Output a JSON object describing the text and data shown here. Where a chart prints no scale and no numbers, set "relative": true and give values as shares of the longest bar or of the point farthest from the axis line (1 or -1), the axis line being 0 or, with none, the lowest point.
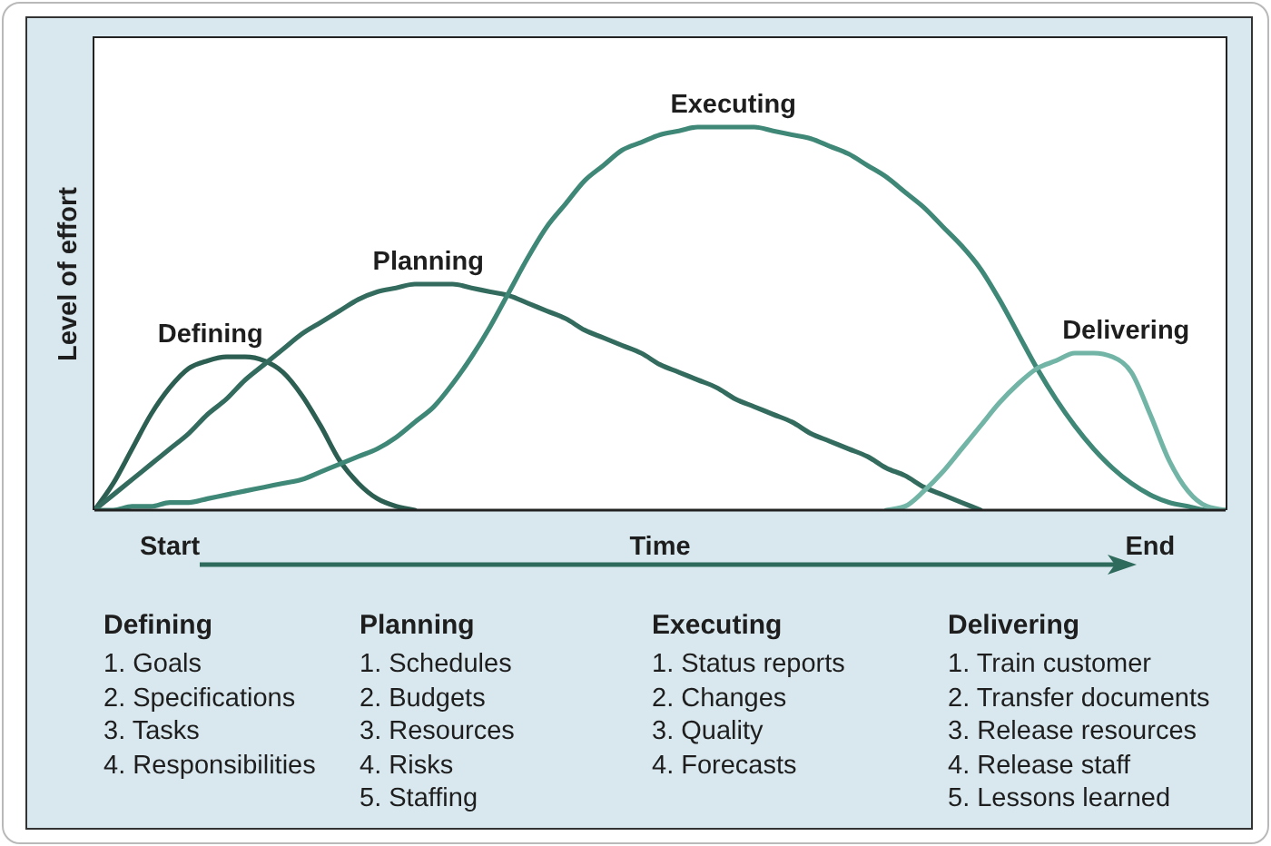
{
  "chart_data": {
    "type": "line",
    "relative": true,
    "xlabel": "Time",
    "ylabel": "Level of effort",
    "categories": [
      null,
      null,
      null,
      null,
      "Start",
      null,
      null,
      null,
      null,
      null,
      null,
      null,
      null,
      null,
      null,
      null,
      null,
      null,
      null,
      null,
      null,
      null,
      null,
      null,
      null,
      null,
      null,
      null,
      null,
      null,
      null,
      null,
      null,
      null,
      null,
      null,
      null,
      null,
      null,
      null,
      null,
      null,
      null,
      null,
      null,
      null,
      null,
      null,
      null,
      null,
      null,
      null,
      null,
      null,
      null,
      null,
      "End",
      null,
      null,
      null,
      null
    ],
    "series": [
      {
        "name": "Defining",
        "color": "#2c5e52",
        "values": [
          0,
          0.07,
          0.16,
          0.25,
          0.32,
          0.37,
          0.39,
          0.4,
          0.4,
          0.39,
          0.36,
          0.3,
          0.22,
          0.13,
          0.07,
          0.03,
          0.01,
          0,
          null,
          null,
          null,
          null,
          null,
          null,
          null,
          null,
          null,
          null,
          null,
          null,
          null,
          null,
          null,
          null,
          null,
          null,
          null,
          null,
          null,
          null,
          null,
          null,
          null,
          null,
          null,
          null,
          null,
          null,
          null,
          null,
          null,
          null,
          null,
          null,
          null,
          null,
          null,
          null,
          null,
          null,
          null
        ]
      },
      {
        "name": "Planning",
        "color": "#336b5e",
        "values": [
          0,
          0.04,
          0.08,
          0.12,
          0.16,
          0.2,
          0.25,
          0.29,
          0.34,
          0.38,
          0.42,
          0.46,
          0.49,
          0.52,
          0.55,
          0.57,
          0.58,
          0.59,
          0.59,
          0.59,
          0.58,
          0.57,
          0.56,
          0.54,
          0.52,
          0.5,
          0.47,
          0.45,
          0.43,
          0.41,
          0.38,
          0.36,
          0.34,
          0.32,
          0.29,
          0.27,
          0.25,
          0.23,
          0.2,
          0.18,
          0.16,
          0.14,
          0.11,
          0.09,
          0.06,
          0.04,
          0.02,
          0,
          null,
          null,
          null,
          null,
          null,
          null,
          null,
          null,
          null,
          null,
          null,
          null,
          null
        ]
      },
      {
        "name": "Executing",
        "color": "#3f8777",
        "values": [
          0,
          0,
          0.01,
          0.01,
          0.02,
          0.02,
          0.03,
          0.04,
          0.05,
          0.06,
          0.07,
          0.08,
          0.1,
          0.12,
          0.14,
          0.16,
          0.19,
          0.23,
          0.27,
          0.33,
          0.4,
          0.48,
          0.57,
          0.66,
          0.74,
          0.8,
          0.86,
          0.9,
          0.94,
          0.96,
          0.98,
          0.99,
          1.0,
          1.0,
          1.0,
          1.0,
          0.99,
          0.98,
          0.97,
          0.95,
          0.93,
          0.9,
          0.87,
          0.83,
          0.79,
          0.74,
          0.69,
          0.63,
          0.55,
          0.46,
          0.37,
          0.29,
          0.22,
          0.16,
          0.11,
          0.07,
          0.04,
          0.02,
          0.01,
          0,
          0
        ]
      },
      {
        "name": "Delivering",
        "color": "#72b5a7",
        "values": [
          null,
          null,
          null,
          null,
          null,
          null,
          null,
          null,
          null,
          null,
          null,
          null,
          null,
          null,
          null,
          null,
          null,
          null,
          null,
          null,
          null,
          null,
          null,
          null,
          null,
          null,
          null,
          null,
          null,
          null,
          null,
          null,
          null,
          null,
          null,
          null,
          null,
          null,
          null,
          null,
          null,
          null,
          0,
          0.01,
          0.05,
          0.1,
          0.16,
          0.22,
          0.28,
          0.33,
          0.37,
          0.39,
          0.41,
          0.41,
          0.4,
          0.36,
          0.25,
          0.13,
          0.05,
          0.01,
          0
        ]
      }
    ],
    "annotations": [
      "Defining\n1. Goals\n2. Specifications\n3. Tasks\n4. Responsibilities",
      "Planning\n1. Schedules\n2. Budgets\n3. Resources\n4. Risks\n5. Staffing",
      "Executing\n1. Status reports\n2. Changes\n3. Quality\n4. Forecasts",
      "Delivering\n1. Train customer\n2. Transfer documents\n3. Release resources\n4. Release staff\n5. Lessons learned"
    ]
  }
}
